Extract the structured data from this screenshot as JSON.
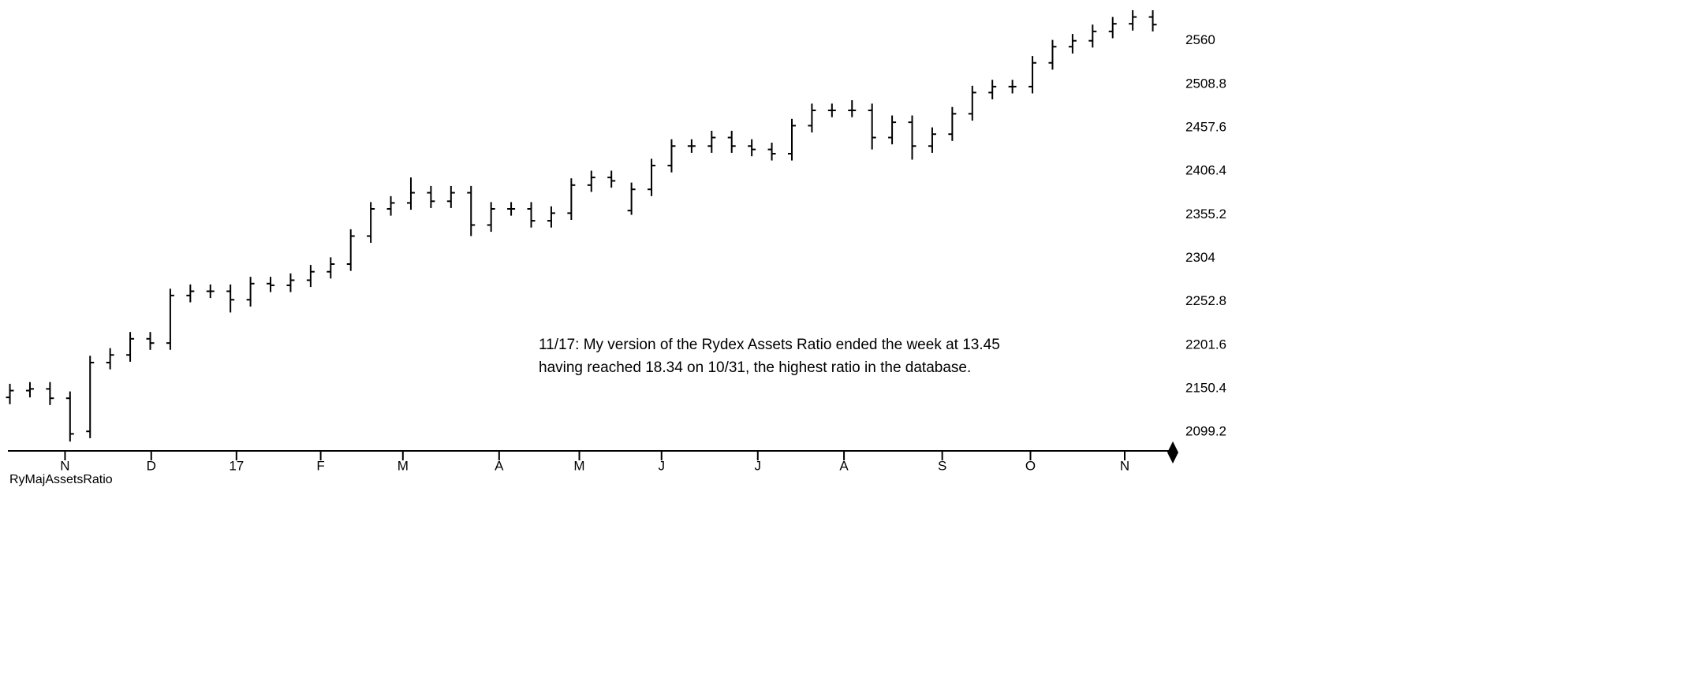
{
  "chart_data": {
    "type": "ohlc",
    "annotation": [
      "11/17: My version of the Rydex Assets Ratio ended the week at 13.45",
      "having reached 18.34 on 10/31, the highest ratio in the database."
    ],
    "footer": "RyMajAssetsRatio",
    "x": [
      0,
      1,
      2,
      3,
      4,
      5,
      6,
      7,
      8,
      9,
      10,
      11,
      12,
      13,
      14,
      15,
      16,
      17,
      18,
      19,
      20,
      21,
      22,
      23,
      24,
      25,
      26,
      27,
      28,
      29,
      30,
      31,
      32,
      33,
      34,
      35,
      36,
      37,
      38,
      39,
      40,
      41,
      42,
      43,
      44,
      45,
      46,
      47,
      48,
      49,
      50,
      51,
      52,
      53,
      54,
      55,
      56,
      57
    ],
    "open": [
      2140,
      2148,
      2150,
      2139,
      2100,
      2181,
      2190,
      2209,
      2204,
      2260,
      2265,
      2265,
      2255,
      2274,
      2272,
      2278,
      2288,
      2297,
      2330,
      2362,
      2369,
      2381,
      2371,
      2381,
      2343,
      2362,
      2362,
      2348,
      2357,
      2390,
      2399,
      2360,
      2385,
      2413,
      2436,
      2436,
      2446,
      2436,
      2432,
      2427,
      2460,
      2478,
      2478,
      2478,
      2446,
      2464,
      2436,
      2450,
      2474,
      2499,
      2506,
      2506,
      2534,
      2553,
      2560,
      2571,
      2580,
      2588
    ],
    "high": [
      2156,
      2158,
      2158,
      2147,
      2189,
      2198,
      2217,
      2217,
      2268,
      2273,
      2273,
      2273,
      2282,
      2282,
      2286,
      2296,
      2305,
      2338,
      2370,
      2377,
      2399,
      2389,
      2389,
      2389,
      2370,
      2370,
      2370,
      2365,
      2398,
      2407,
      2407,
      2393,
      2421,
      2444,
      2444,
      2454,
      2454,
      2444,
      2440,
      2468,
      2486,
      2486,
      2490,
      2486,
      2472,
      2472,
      2458,
      2482,
      2507,
      2514,
      2514,
      2542,
      2561,
      2568,
      2579,
      2588,
      2596,
      2596
    ],
    "low": [
      2132,
      2140,
      2131,
      2088,
      2092,
      2173,
      2182,
      2196,
      2196,
      2252,
      2257,
      2240,
      2247,
      2264,
      2264,
      2270,
      2280,
      2289,
      2322,
      2354,
      2361,
      2363,
      2363,
      2330,
      2335,
      2354,
      2340,
      2340,
      2349,
      2382,
      2387,
      2355,
      2377,
      2405,
      2428,
      2428,
      2428,
      2424,
      2419,
      2419,
      2452,
      2470,
      2470,
      2432,
      2438,
      2420,
      2428,
      2442,
      2466,
      2491,
      2498,
      2498,
      2526,
      2545,
      2552,
      2563,
      2572,
      2571
    ],
    "close": [
      2148,
      2150,
      2139,
      2097,
      2181,
      2190,
      2209,
      2204,
      2260,
      2265,
      2265,
      2255,
      2274,
      2272,
      2278,
      2288,
      2297,
      2330,
      2362,
      2369,
      2381,
      2371,
      2381,
      2343,
      2362,
      2362,
      2348,
      2357,
      2390,
      2399,
      2395,
      2385,
      2413,
      2436,
      2436,
      2446,
      2436,
      2432,
      2427,
      2460,
      2478,
      2478,
      2478,
      2446,
      2464,
      2436,
      2450,
      2474,
      2499,
      2506,
      2506,
      2534,
      2553,
      2560,
      2571,
      2580,
      2588,
      2579
    ],
    "color": "#000000",
    "xlim": [
      -0.1,
      58
    ],
    "xticks": [
      {
        "value": 2.75,
        "label": "N"
      },
      {
        "value": 7.05,
        "label": "D"
      },
      {
        "value": 11.3,
        "label": "17"
      },
      {
        "value": 15.5,
        "label": "F"
      },
      {
        "value": 19.6,
        "label": "M"
      },
      {
        "value": 24.4,
        "label": "A"
      },
      {
        "value": 28.4,
        "label": "M"
      },
      {
        "value": 32.5,
        "label": "J"
      },
      {
        "value": 37.3,
        "label": "J"
      },
      {
        "value": 41.6,
        "label": "A"
      },
      {
        "value": 46.5,
        "label": "S"
      },
      {
        "value": 50.9,
        "label": "O"
      },
      {
        "value": 55.6,
        "label": "N"
      }
    ],
    "ylim": [
      2077,
      2608
    ],
    "yticks": [
      2099.2,
      2150.4,
      2201.6,
      2252.8,
      2304,
      2355.2,
      2406.4,
      2457.6,
      2508.8,
      2560
    ]
  }
}
